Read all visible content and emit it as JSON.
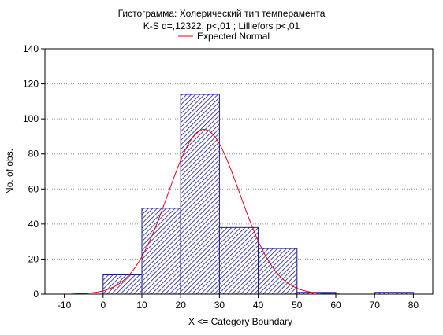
{
  "chart_data": {
    "type": "bar",
    "title": "Гистограмма: Холерический тип темперамента",
    "subtitle": "K-S d=,12322, p<,01 ; Lilliefors p<,01",
    "xlabel": "X <= Category Boundary",
    "ylabel": "No. of obs.",
    "xlim": [
      -15,
      85
    ],
    "ylim": [
      0,
      140
    ],
    "x_ticks": [
      "-10",
      "0",
      "10",
      "20",
      "30",
      "40",
      "50",
      "60",
      "70",
      "80"
    ],
    "y_ticks": [
      "0",
      "20",
      "40",
      "60",
      "80",
      "100",
      "120",
      "140"
    ],
    "bins": [
      {
        "from": 0,
        "to": 10,
        "value": 11
      },
      {
        "from": 10,
        "to": 20,
        "value": 49
      },
      {
        "from": 20,
        "to": 30,
        "value": 114
      },
      {
        "from": 30,
        "to": 40,
        "value": 38
      },
      {
        "from": 40,
        "to": 50,
        "value": 26
      },
      {
        "from": 50,
        "to": 60,
        "value": 1
      },
      {
        "from": 60,
        "to": 70,
        "value": 0
      },
      {
        "from": 70,
        "to": 80,
        "value": 1
      }
    ],
    "normal_curve": {
      "name": "Expected Normal",
      "peak_x": 26,
      "peak_y": 94,
      "stddev": 9.3,
      "range": [
        -8,
        61
      ],
      "color": "#e8001c"
    },
    "bar_color": "#1a1a8c",
    "grid": "horizontal-dotted",
    "legend_position": "top-center"
  }
}
